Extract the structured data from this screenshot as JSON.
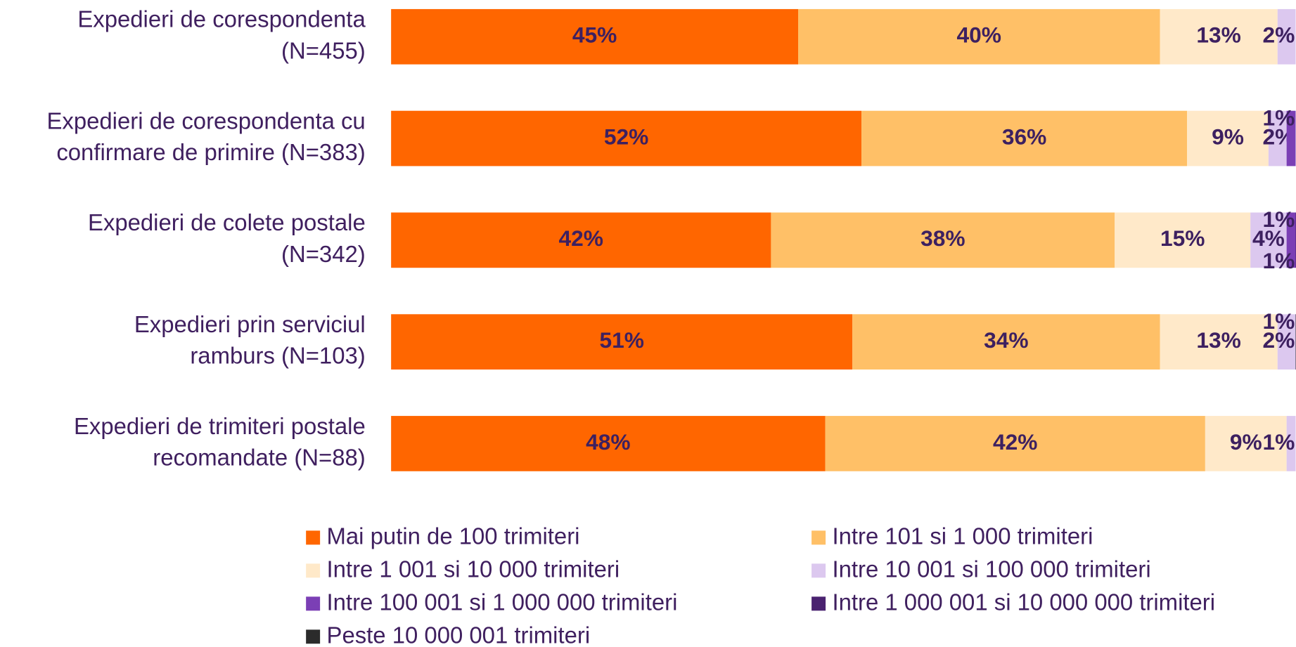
{
  "chart_data": {
    "type": "stacked_bar_horizontal",
    "categories": [
      [
        "Expedieri de corespondenta",
        "(N=455)"
      ],
      [
        "Expedieri de corespondenta cu",
        "confirmare de primire (N=383)"
      ],
      [
        "Expedieri de colete postale",
        "(N=342)"
      ],
      [
        "Expedieri prin serviciul",
        "ramburs (N=103)"
      ],
      [
        "Expedieri de trimiteri postale",
        "recomandate (N=88)"
      ]
    ],
    "xlim": [
      0,
      100
    ],
    "series": [
      {
        "name": "Mai putin de 100 trimiteri",
        "color": "#ff6600",
        "values": [
          45,
          52,
          42,
          51,
          48
        ],
        "value_labels": [
          "45%",
          "52%",
          "42%",
          "51%",
          "48%"
        ]
      },
      {
        "name": "Intre 101 si 1 000 trimiteri",
        "color": "#ffc067",
        "values": [
          40,
          36,
          38,
          34,
          42
        ],
        "value_labels": [
          "40%",
          "36%",
          "38%",
          "34%",
          "42%"
        ]
      },
      {
        "name": "Intre 1 001 si 10 000 trimiteri",
        "color": "#ffe9c9",
        "values": [
          13,
          9,
          15,
          13,
          9
        ],
        "value_labels": [
          "13%",
          "9%",
          "15%",
          "13%",
          "9%"
        ]
      },
      {
        "name": "Intre 10 001 si 100 000 trimiteri",
        "color": "#dcc8ef",
        "values": [
          2,
          2,
          4,
          2,
          1
        ],
        "value_labels": [
          "2%",
          "2%",
          "4%",
          "2%",
          "1%"
        ]
      },
      {
        "name": "Intre 100 001 si 1 000 000 trimiteri",
        "color": "#7b3fb5",
        "values": [
          0,
          1,
          1,
          0,
          0
        ],
        "value_labels": [
          null,
          "1%",
          "1%",
          null,
          null
        ]
      },
      {
        "name": "Intre 1 000 001 si 10 000 000 trimiteri",
        "color": "#4a2270",
        "values": [
          0,
          0,
          1,
          0,
          0
        ],
        "value_labels": [
          null,
          null,
          "1%",
          null,
          null
        ]
      },
      {
        "name": "Peste 10 000 001 trimiteri",
        "color": "#2b2b2b",
        "values": [
          0,
          0,
          0,
          1,
          0
        ],
        "value_labels": [
          null,
          null,
          null,
          "1%",
          null
        ]
      }
    ]
  }
}
